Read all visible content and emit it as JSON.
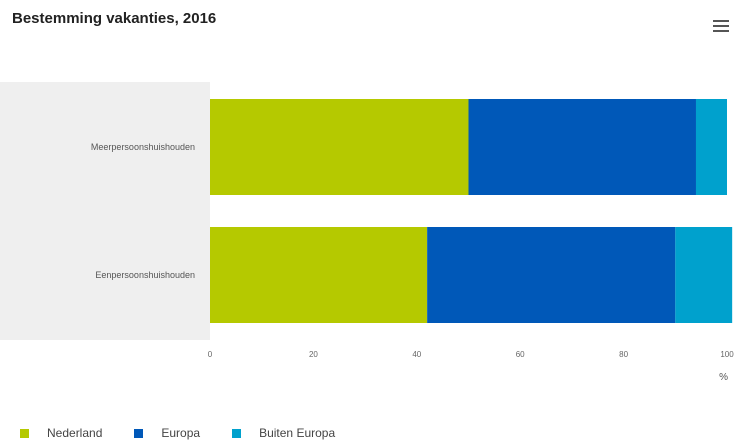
{
  "title": "Bestemming vakanties, 2016",
  "chart_data": {
    "type": "bar",
    "orientation": "horizontal",
    "stacked": true,
    "categories": [
      "Meerpersoonshuishouden",
      "Eenpersoonshuishouden"
    ],
    "series": [
      {
        "name": "Nederland",
        "color": "#b5c900",
        "values": [
          50,
          42
        ]
      },
      {
        "name": "Europa",
        "color": "#0058b8",
        "values": [
          44,
          48
        ]
      },
      {
        "name": "Buiten Europa",
        "color": "#00a1cd",
        "values": [
          6,
          11
        ]
      }
    ],
    "xticks": [
      "0",
      "20",
      "40",
      "60",
      "80",
      "100"
    ],
    "xlim": [
      0,
      100
    ],
    "unit_label": "%",
    "legend_position": "bottom-left"
  }
}
